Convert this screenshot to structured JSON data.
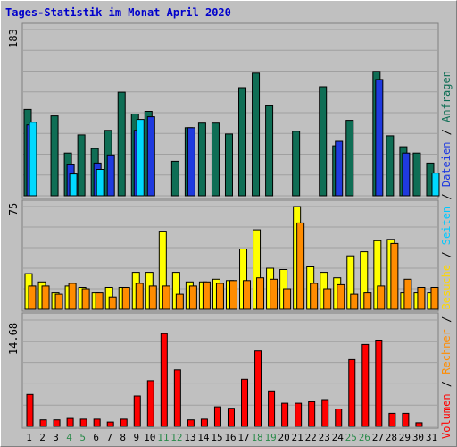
{
  "chart_data": {
    "type": "bar",
    "title": "Tages-Statistik im Monat April 2020",
    "categories": [
      "1",
      "2",
      "3",
      "4",
      "5",
      "6",
      "7",
      "8",
      "9",
      "10",
      "11",
      "12",
      "13",
      "14",
      "15",
      "16",
      "17",
      "18",
      "19",
      "20",
      "21",
      "22",
      "23",
      "24",
      "25",
      "26",
      "27",
      "28",
      "29",
      "30",
      "31"
    ],
    "weekend_days": [
      "4",
      "5",
      "11",
      "12",
      "18",
      "19",
      "25",
      "26"
    ],
    "panels": [
      {
        "name": "top",
        "ymax_label": "183",
        "ylim": [
          0,
          183
        ],
        "series": [
          {
            "name": "Anfragen",
            "color": "#0f6e55",
            "values": [
              95,
              0,
              88,
              47,
              67,
              52,
              72,
              114,
              90,
              93,
              0,
              38,
              75,
              80,
              80,
              68,
              119,
              135,
              99,
              0,
              71,
              0,
              120,
              55,
              83,
              0,
              137,
              66,
              54,
              47,
              36
            ]
          },
          {
            "name": "Dateien",
            "color": "#1f3adf",
            "values": [
              78,
              0,
              0,
              34,
              0,
              36,
              45,
              0,
              72,
              87,
              0,
              0,
              75,
              0,
              0,
              0,
              0,
              0,
              0,
              0,
              0,
              0,
              0,
              60,
              0,
              0,
              128,
              0,
              47,
              0,
              0
            ]
          },
          {
            "name": "Seiten",
            "color": "#00d9ff",
            "values": [
              81,
              0,
              0,
              24,
              0,
              29,
              0,
              0,
              84,
              0,
              0,
              0,
              0,
              0,
              0,
              0,
              0,
              0,
              0,
              0,
              0,
              0,
              0,
              0,
              0,
              0,
              0,
              0,
              0,
              0,
              25
            ]
          }
        ]
      },
      {
        "name": "middle",
        "ymax_label": "75",
        "ylim": [
          0,
          75
        ],
        "series": [
          {
            "name": "Besuche",
            "color": "#ffff00",
            "values": [
              26,
              20,
              12,
              17,
              16,
              12,
              16,
              16,
              27,
              27,
              57,
              27,
              20,
              20,
              22,
              21,
              44,
              58,
              30,
              29,
              75,
              31,
              27,
              23,
              39,
              42,
              50,
              51,
              12,
              12,
              12
            ]
          },
          {
            "name": "Rechner",
            "color": "#ff8c00",
            "values": [
              17,
              17,
              11,
              19,
              15,
              12,
              9,
              16,
              19,
              17,
              17,
              11,
              17,
              20,
              19,
              21,
              21,
              23,
              22,
              15,
              63,
              19,
              15,
              18,
              11,
              12,
              17,
              48,
              22,
              16,
              16
            ]
          }
        ]
      },
      {
        "name": "bottom",
        "ymax_label": "14.68",
        "ylim": [
          0,
          14.68
        ],
        "series": [
          {
            "name": "Volumen",
            "color": "#ff0000",
            "values": [
              4.4,
              0.9,
              0.9,
              1.1,
              1.0,
              1.0,
              0.6,
              1.0,
              4.2,
              6.3,
              12.8,
              7.8,
              0.9,
              1.0,
              2.7,
              2.5,
              6.5,
              10.4,
              4.9,
              3.2,
              3.2,
              3.4,
              3.7,
              2.4,
              9.2,
              11.3,
              11.9,
              1.8,
              1.8,
              0.5,
              0
            ]
          }
        ]
      }
    ],
    "legend_right": [
      "Volumen",
      "/",
      "Rechner",
      "/",
      "Besuche",
      "/",
      "Seiten",
      "/",
      "Dateien",
      "/",
      "Anfragen"
    ]
  }
}
